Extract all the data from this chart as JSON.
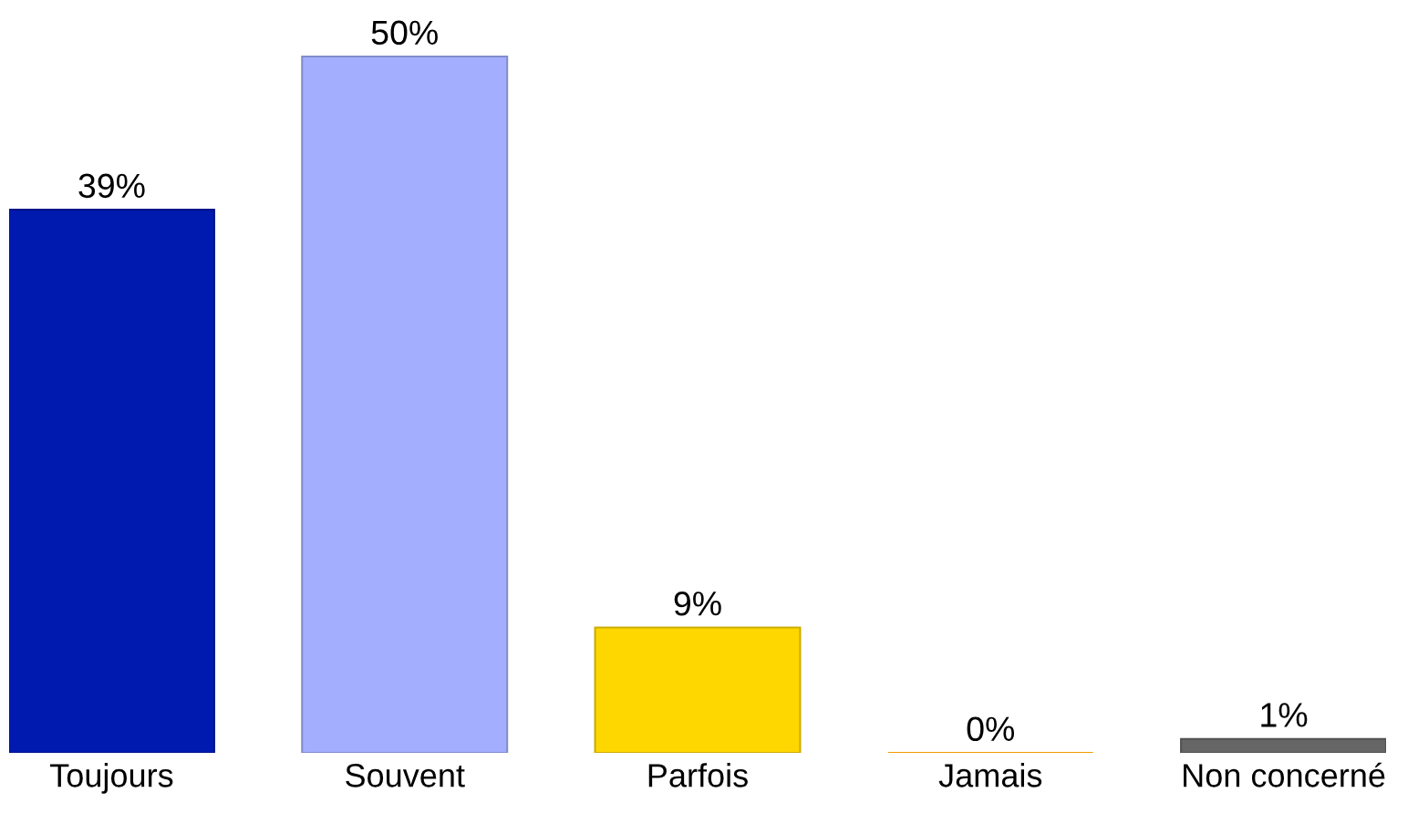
{
  "chart_data": {
    "type": "bar",
    "categories": [
      "Toujours",
      "Souvent",
      "Parfois",
      "Jamais",
      "Non concerné"
    ],
    "values": [
      39,
      50,
      9,
      0,
      1
    ],
    "value_labels": [
      "39%",
      "50%",
      "9%",
      "0%",
      "1%"
    ],
    "colors": [
      "#001aaf",
      "#a3affe",
      "#fed700",
      "#f59b00",
      "#666666"
    ],
    "grid": false,
    "legend": false
  }
}
